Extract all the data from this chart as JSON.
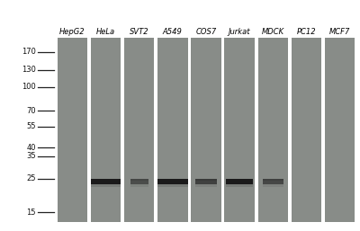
{
  "cell_lines": [
    "HepG2",
    "HeLa",
    "SVT2",
    "A549",
    "COS7",
    "Jurkat",
    "MDCK",
    "PC12",
    "MCF7"
  ],
  "mw_markers": [
    170,
    130,
    100,
    70,
    55,
    40,
    35,
    25,
    15
  ],
  "bg_color": "#ffffff",
  "lane_color": "#888c88",
  "band_color": "#1a1a1a",
  "band_positions": {
    "HeLa": 24,
    "SVT2": 24,
    "A549": 24,
    "COS7": 24,
    "Jurkat": 24,
    "MDCK": 24
  },
  "band_intensities": {
    "HeLa": 1.0,
    "SVT2": 0.55,
    "A549": 1.0,
    "COS7": 0.65,
    "Jurkat": 1.0,
    "MDCK": 0.6
  },
  "band_widths": {
    "HeLa": 1.0,
    "SVT2": 0.6,
    "A549": 1.0,
    "COS7": 0.7,
    "Jurkat": 0.9,
    "MDCK": 0.7
  },
  "figsize": [
    4.0,
    2.57
  ],
  "dpi": 100,
  "label_fontsize": 6.0,
  "marker_fontsize": 6.0,
  "mw_min": 13,
  "mw_max": 210
}
